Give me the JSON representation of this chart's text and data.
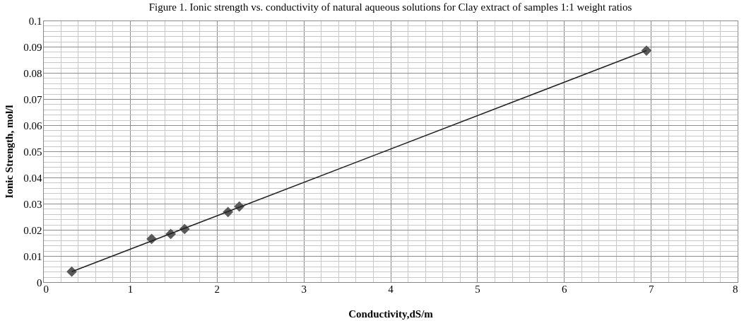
{
  "chart_data": {
    "type": "scatter",
    "title": "Figure 1. Ionic strength vs. conductivity of natural aqueous solutions for Clay extract of samples 1:1 weight ratios",
    "xlabel": "Conductivity,dS/m",
    "ylabel": "Ionic Strength, mol/l",
    "xlim": [
      0,
      8
    ],
    "xticks": [
      0,
      1,
      2,
      3,
      4,
      5,
      6,
      7,
      8
    ],
    "ylim": [
      0,
      0.1
    ],
    "yticks": [
      0,
      0.01,
      0.02,
      0.03,
      0.04,
      0.05,
      0.06,
      0.07,
      0.08,
      0.09,
      0.1
    ],
    "grid": true,
    "series": [
      {
        "color": "#595959",
        "marker": "diamond",
        "x": [
          0.33,
          1.25,
          1.47,
          1.63,
          2.13,
          2.26,
          6.95
        ],
        "values": [
          0.004,
          0.0165,
          0.0184,
          0.0203,
          0.0268,
          0.0289,
          0.0885
        ]
      },
      {
        "type": "line",
        "marker": "none",
        "color": "#222222",
        "x": [
          0.33,
          6.95
        ],
        "values": [
          0.004,
          0.0885
        ]
      }
    ]
  }
}
